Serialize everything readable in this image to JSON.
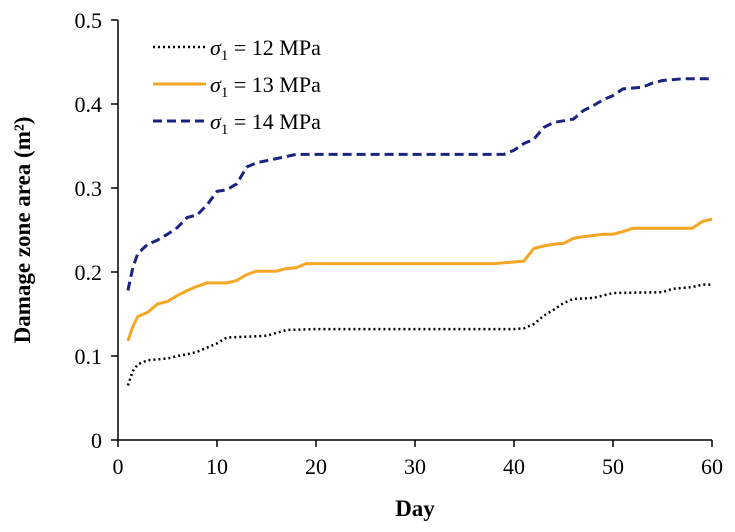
{
  "chart_data": {
    "type": "line",
    "title": "",
    "xlabel": "Day",
    "ylabel": "Damage zone area (m²)",
    "xlim": [
      0,
      60
    ],
    "ylim": [
      0,
      0.5
    ],
    "x_ticks": [
      "0",
      "10",
      "20",
      "30",
      "40",
      "50",
      "60"
    ],
    "y_ticks": [
      "0",
      "0.1",
      "0.2",
      "0.3",
      "0.4",
      "0.5"
    ],
    "grid": false,
    "legend_position": "top-left",
    "series": [
      {
        "name": "σ1 = 12 MPa",
        "name_symbol": "σ",
        "name_subscript": "1",
        "name_rest": " = 12 MPa",
        "color": "#000000",
        "style": "dotted",
        "points": [
          [
            1,
            0.065
          ],
          [
            1.5,
            0.082
          ],
          [
            2,
            0.09
          ],
          [
            3,
            0.095
          ],
          [
            5,
            0.097
          ],
          [
            6,
            0.1
          ],
          [
            7,
            0.102
          ],
          [
            8,
            0.105
          ],
          [
            9,
            0.11
          ],
          [
            10,
            0.115
          ],
          [
            11,
            0.122
          ],
          [
            13,
            0.123
          ],
          [
            15,
            0.124
          ],
          [
            17,
            0.131
          ],
          [
            20,
            0.132
          ],
          [
            30,
            0.132
          ],
          [
            40,
            0.132
          ],
          [
            41,
            0.133
          ],
          [
            42,
            0.138
          ],
          [
            43,
            0.148
          ],
          [
            44,
            0.155
          ],
          [
            45,
            0.163
          ],
          [
            46,
            0.168
          ],
          [
            48,
            0.169
          ],
          [
            49,
            0.172
          ],
          [
            50,
            0.175
          ],
          [
            55,
            0.176
          ],
          [
            56,
            0.18
          ],
          [
            58,
            0.182
          ],
          [
            59,
            0.185
          ],
          [
            60,
            0.185
          ]
        ]
      },
      {
        "name": "σ1 = 13 MPa",
        "name_symbol": "σ",
        "name_subscript": "1",
        "name_rest": " = 13 MPa",
        "color": "#F5A623",
        "style": "solid",
        "points": [
          [
            1,
            0.118
          ],
          [
            1.5,
            0.135
          ],
          [
            2,
            0.147
          ],
          [
            3,
            0.152
          ],
          [
            4,
            0.162
          ],
          [
            5,
            0.165
          ],
          [
            6,
            0.172
          ],
          [
            7,
            0.178
          ],
          [
            8,
            0.183
          ],
          [
            9,
            0.187
          ],
          [
            10,
            0.187
          ],
          [
            11,
            0.187
          ],
          [
            12,
            0.19
          ],
          [
            13,
            0.197
          ],
          [
            14,
            0.201
          ],
          [
            16,
            0.201
          ],
          [
            17,
            0.204
          ],
          [
            18,
            0.205
          ],
          [
            19,
            0.21
          ],
          [
            30,
            0.21
          ],
          [
            38,
            0.21
          ],
          [
            39,
            0.211
          ],
          [
            41,
            0.213
          ],
          [
            42,
            0.228
          ],
          [
            43,
            0.231
          ],
          [
            44,
            0.233
          ],
          [
            45,
            0.234
          ],
          [
            46,
            0.24
          ],
          [
            47,
            0.242
          ],
          [
            49,
            0.245
          ],
          [
            50,
            0.245
          ],
          [
            51,
            0.248
          ],
          [
            52,
            0.252
          ],
          [
            58,
            0.252
          ],
          [
            59,
            0.26
          ],
          [
            60,
            0.263
          ]
        ]
      },
      {
        "name": "σ1 = 14 MPa",
        "name_symbol": "σ",
        "name_subscript": "1",
        "name_rest": " = 14 MPa",
        "color": "#1A237E",
        "style": "dashed",
        "points": [
          [
            1,
            0.178
          ],
          [
            1.5,
            0.205
          ],
          [
            2,
            0.222
          ],
          [
            3,
            0.233
          ],
          [
            4,
            0.238
          ],
          [
            5,
            0.245
          ],
          [
            6,
            0.253
          ],
          [
            7,
            0.265
          ],
          [
            8,
            0.268
          ],
          [
            9,
            0.28
          ],
          [
            10,
            0.296
          ],
          [
            11,
            0.298
          ],
          [
            12,
            0.305
          ],
          [
            13,
            0.325
          ],
          [
            14,
            0.33
          ],
          [
            16,
            0.335
          ],
          [
            18,
            0.34
          ],
          [
            25,
            0.34
          ],
          [
            35,
            0.34
          ],
          [
            39,
            0.34
          ],
          [
            40,
            0.345
          ],
          [
            41,
            0.353
          ],
          [
            42,
            0.358
          ],
          [
            43,
            0.372
          ],
          [
            44,
            0.378
          ],
          [
            46,
            0.382
          ],
          [
            47,
            0.392
          ],
          [
            48,
            0.398
          ],
          [
            49,
            0.405
          ],
          [
            50,
            0.41
          ],
          [
            51,
            0.418
          ],
          [
            53,
            0.42
          ],
          [
            54,
            0.425
          ],
          [
            55,
            0.428
          ],
          [
            57,
            0.43
          ],
          [
            60,
            0.43
          ]
        ]
      }
    ]
  }
}
